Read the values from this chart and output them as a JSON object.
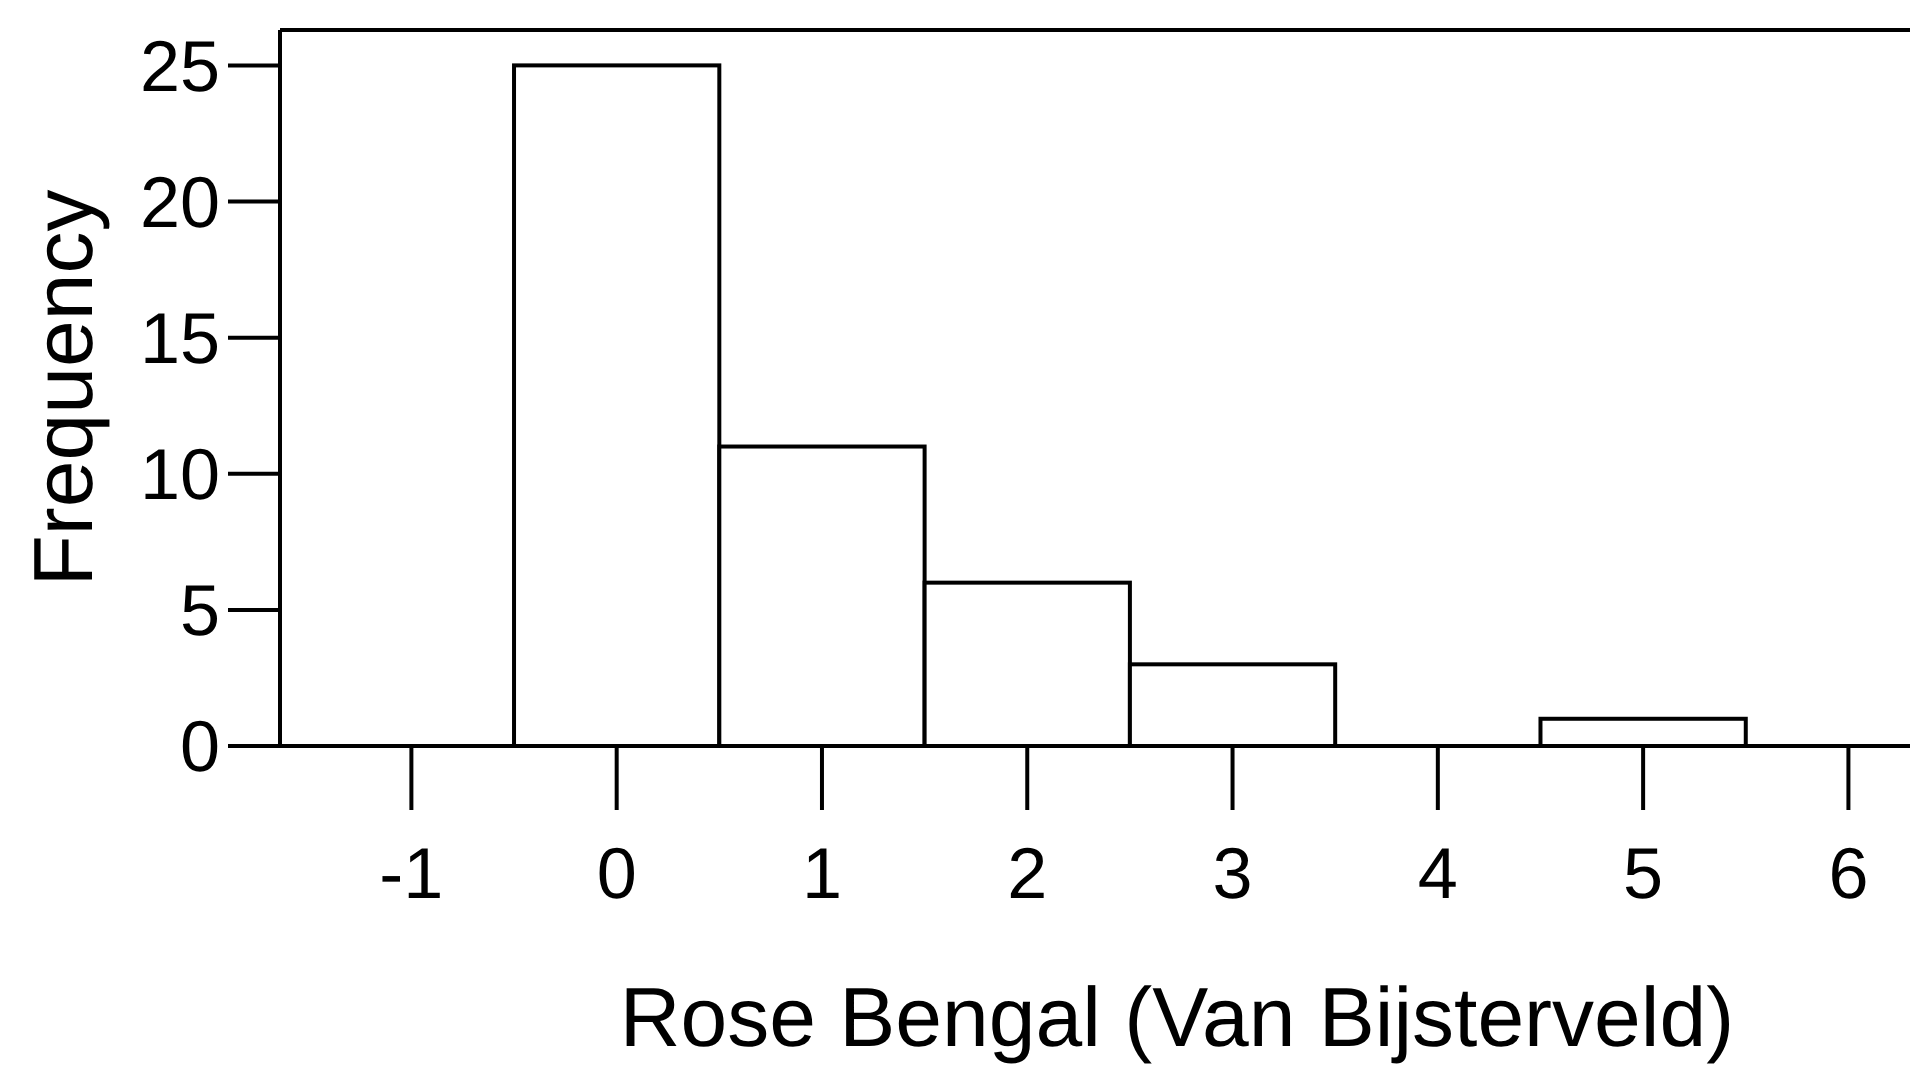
{
  "chart_data": {
    "type": "histogram",
    "xlabel": "Rose Bengal (Van Bijsterveld)",
    "ylabel": "Frequency",
    "bins": [
      -0.5,
      0.5,
      1.5,
      2.5,
      3.5,
      4.5,
      5.5
    ],
    "values": [
      25,
      11,
      6,
      3,
      0,
      1
    ],
    "color": "#ffffff",
    "xlim": [
      -1.64,
      6.3
    ],
    "xticks": [
      -1,
      0,
      1,
      2,
      3,
      4,
      5,
      6
    ],
    "ylim": [
      0,
      26.3
    ],
    "yticks": [
      0,
      5,
      10,
      15,
      20,
      25
    ],
    "grid": false
  }
}
